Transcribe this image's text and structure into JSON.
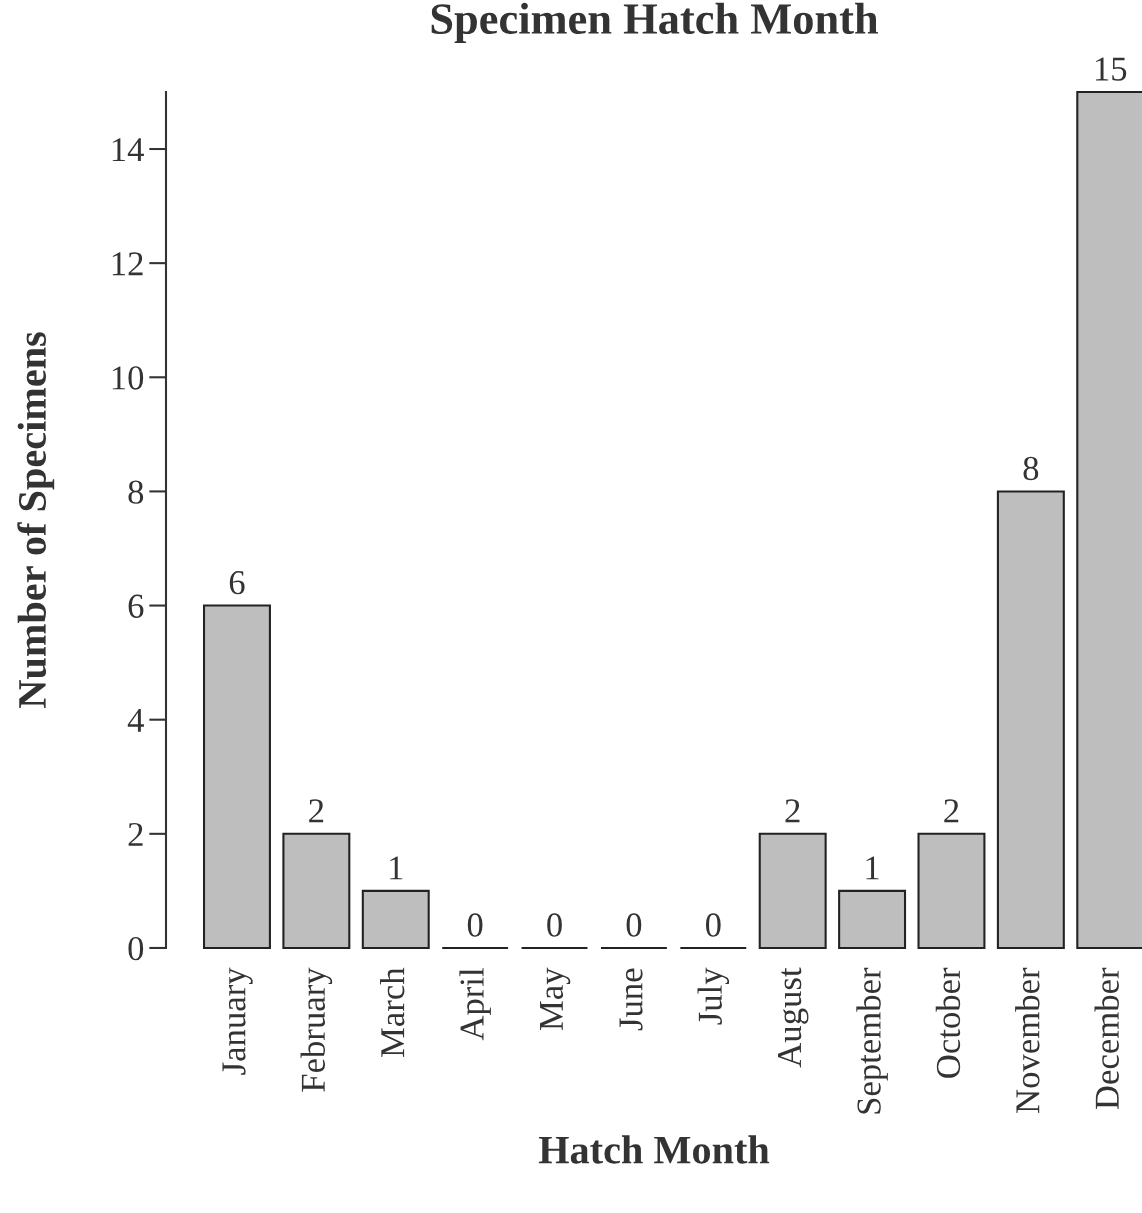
{
  "chart_data": {
    "type": "bar",
    "title": "Specimen Hatch Month",
    "xlabel": "Hatch Month",
    "ylabel": "Number of Specimens",
    "categories": [
      "January",
      "February",
      "March",
      "April",
      "May",
      "June",
      "July",
      "August",
      "September",
      "October",
      "November",
      "December"
    ],
    "values": [
      6,
      2,
      1,
      0,
      0,
      0,
      0,
      2,
      1,
      2,
      8,
      15
    ],
    "color": "#bebebe",
    "ylim": [
      0,
      15
    ],
    "yticks": [
      0,
      2,
      4,
      6,
      8,
      10,
      12,
      14
    ],
    "data_labels": true,
    "grid": false,
    "legend": false
  }
}
